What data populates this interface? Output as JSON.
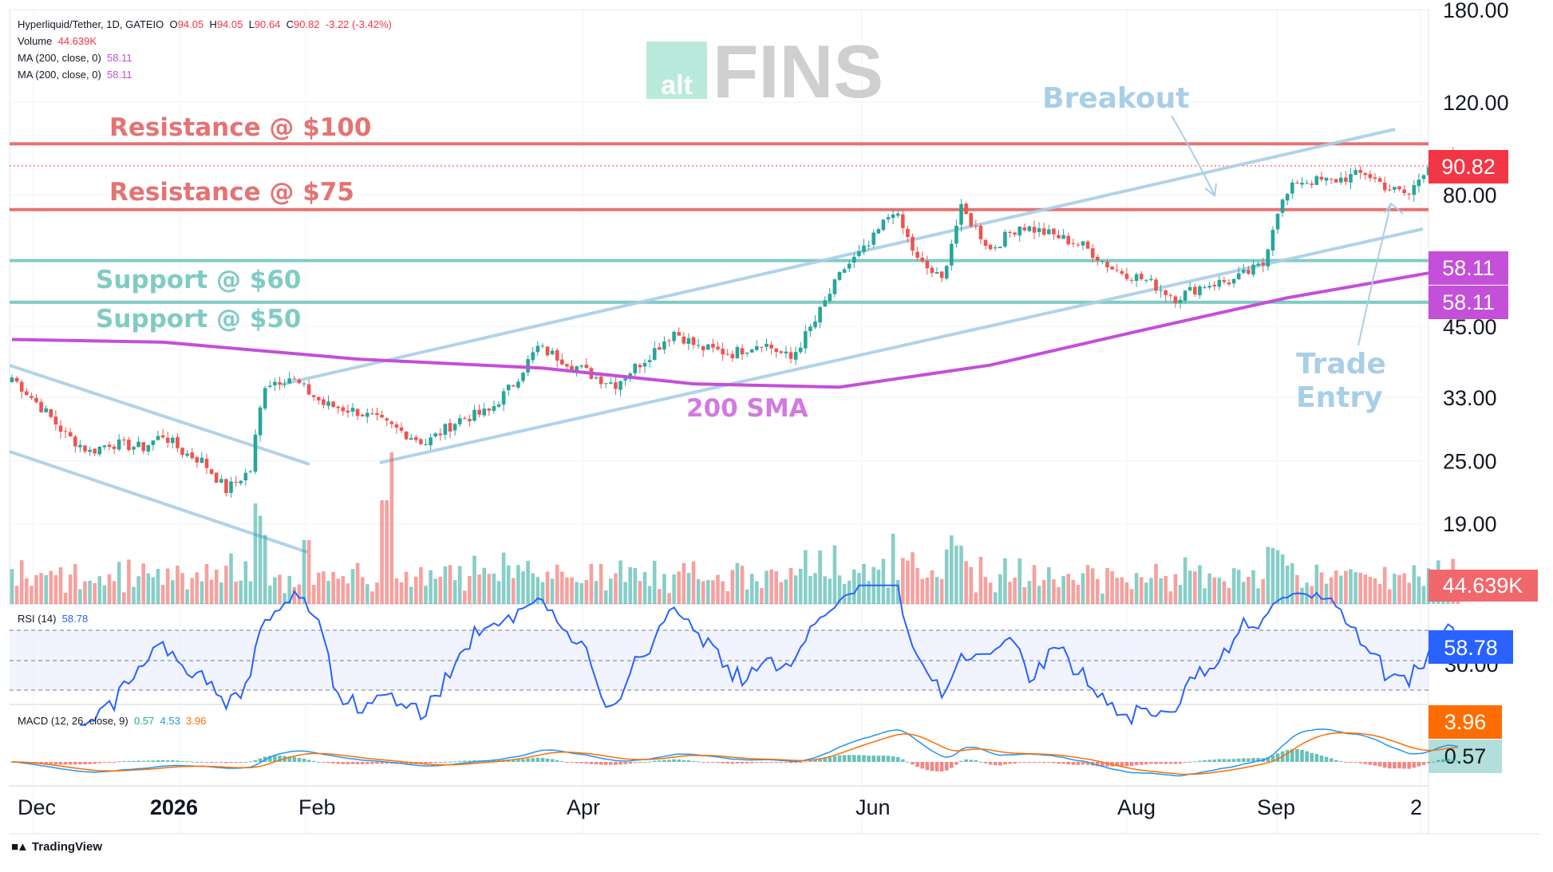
{
  "header": {
    "symbol": "Hyperliquid/Tether, 1D, GATEIO",
    "ohlc_label_o": "O",
    "ohlc_o": "94.05",
    "ohlc_label_h": "H",
    "ohlc_h": "94.05",
    "ohlc_label_l": "L",
    "ohlc_l": "90.64",
    "ohlc_label_c": "C",
    "ohlc_c": "90.82",
    "change": "-3.22 (-3.42%)",
    "volume_label": "Volume",
    "volume_value": "44.639K",
    "ma1_label": "MA (200, close, 0)",
    "ma1_value": "58.11",
    "ma2_label": "MA (200, close, 0)",
    "ma2_value": "58.11"
  },
  "watermark": {
    "badge": "alt",
    "text": "FINS"
  },
  "annotations": {
    "resistance_100": "Resistance @ $100",
    "resistance_75": "Resistance @ $75",
    "support_60": "Support @ $60",
    "support_50": "Support @ $50",
    "breakout": "Breakout",
    "trade_entry_1": "Trade",
    "trade_entry_2": "Entry",
    "sma_label": "200 SMA"
  },
  "price_axis": {
    "ticks": [
      "180.00",
      "120.00",
      "80.00",
      "45.00",
      "33.00",
      "25.00",
      "19.00"
    ],
    "badges": {
      "price": "90.82",
      "ma1": "58.11",
      "ma2": "58.11",
      "volume": "44.639K",
      "rsi": "58.78",
      "rsi_tick": "30.00",
      "macd_signal": "3.96",
      "macd_hist": "0.57"
    }
  },
  "time_axis": {
    "labels": [
      "Dec",
      "2026",
      "Feb",
      "Apr",
      "Jun",
      "Aug",
      "Sep",
      "2"
    ]
  },
  "rsi": {
    "label": "RSI (14)",
    "value": "58.78"
  },
  "macd": {
    "label": "MACD (12, 26, close, 9)",
    "hist": "0.57",
    "macd": "4.53",
    "signal": "3.96"
  },
  "footer": {
    "brand": "TradingView"
  },
  "colors": {
    "up": "#26a69a",
    "down": "#ef5350",
    "resistance": "#e57373",
    "support": "#80cbc4",
    "channel": "#a9cfe6",
    "sma": "#c44fd8",
    "rsi": "#2962ff",
    "macd": "#2196f3",
    "signal": "#ff6d00"
  },
  "chart_data": {
    "type": "candlestick",
    "title": "Hyperliquid/Tether, 1D, GATEIO",
    "scale": "log",
    "ylim": [
      17,
      180
    ],
    "price_path": [
      [
        "Dec 1",
        36
      ],
      [
        "Dec 5",
        33
      ],
      [
        "Dec 12",
        28
      ],
      [
        "Dec 17",
        26
      ],
      [
        "Dec 21",
        27
      ],
      [
        "Dec 28",
        26.5
      ],
      [
        "Jan 1",
        28
      ],
      [
        "Jan 5",
        26
      ],
      [
        "Jan 9",
        25
      ],
      [
        "Jan 14",
        22
      ],
      [
        "Jan 19",
        24
      ],
      [
        "Jan 22",
        35
      ],
      [
        "Jan 27",
        36
      ],
      [
        "Feb 3",
        32
      ],
      [
        "Feb 10",
        31
      ],
      [
        "Feb 17",
        29
      ],
      [
        "Feb 24",
        27
      ],
      [
        "Mar 3",
        30
      ],
      [
        "Mar 9",
        31
      ],
      [
        "Mar 14",
        35
      ],
      [
        "Mar 19",
        41
      ],
      [
        "Mar 24",
        39
      ],
      [
        "Mar 31",
        36
      ],
      [
        "Apr 4",
        35
      ],
      [
        "Apr 10",
        39
      ],
      [
        "Apr 16",
        44
      ],
      [
        "Apr 21",
        41
      ],
      [
        "Apr 28",
        40
      ],
      [
        "May 4",
        42
      ],
      [
        "May 10",
        39
      ],
      [
        "May 15",
        46
      ],
      [
        "May 21",
        58
      ],
      [
        "May 26",
        64
      ],
      [
        "May 31",
        75
      ],
      [
        "Jun 5",
        60
      ],
      [
        "Jun 10",
        55
      ],
      [
        "Jun 14",
        75
      ],
      [
        "Jun 20",
        63
      ],
      [
        "Jun 26",
        70
      ],
      [
        "Jul 3",
        67
      ],
      [
        "Jul 9",
        64
      ],
      [
        "Jul 15",
        58
      ],
      [
        "Jul 22",
        55
      ],
      [
        "Jul 28",
        51
      ],
      [
        "Aug 3",
        54
      ],
      [
        "Aug 9",
        55
      ],
      [
        "Aug 15",
        59
      ],
      [
        "Aug 18",
        75
      ],
      [
        "Aug 22",
        85
      ],
      [
        "Aug 29",
        85
      ],
      [
        "Sep 5",
        88
      ],
      [
        "Sep 10",
        82
      ],
      [
        "Sep 14",
        80
      ],
      [
        "Sep 18",
        92
      ],
      [
        "Sep 22",
        94
      ],
      [
        "Sep 24",
        90.82
      ]
    ],
    "sma200": [
      [
        "Dec 1",
        42.5
      ],
      [
        "Jan 1",
        42
      ],
      [
        "Feb 10",
        39
      ],
      [
        "Mar 20",
        37.5
      ],
      [
        "Apr 20",
        35
      ],
      [
        "May 20",
        34.5
      ],
      [
        "Jun 20",
        38
      ],
      [
        "Jul 20",
        44
      ],
      [
        "Aug 20",
        51
      ],
      [
        "Sep 24",
        58.11
      ]
    ],
    "horizontal_levels": [
      {
        "label": "Resistance @ $100",
        "value": 100
      },
      {
        "label": "Resistance @ $75",
        "value": 75
      },
      {
        "label": "Support @ $60",
        "value": 60
      },
      {
        "label": "Support @ $50",
        "value": 50
      }
    ],
    "volume_last": "44.639K",
    "rsi": {
      "period": 14,
      "last": 58.78,
      "levels": [
        70,
        50,
        30
      ]
    },
    "macd": {
      "params": "12, 26, close, 9",
      "histogram": 0.57,
      "macd": 4.53,
      "signal": 3.96
    }
  }
}
